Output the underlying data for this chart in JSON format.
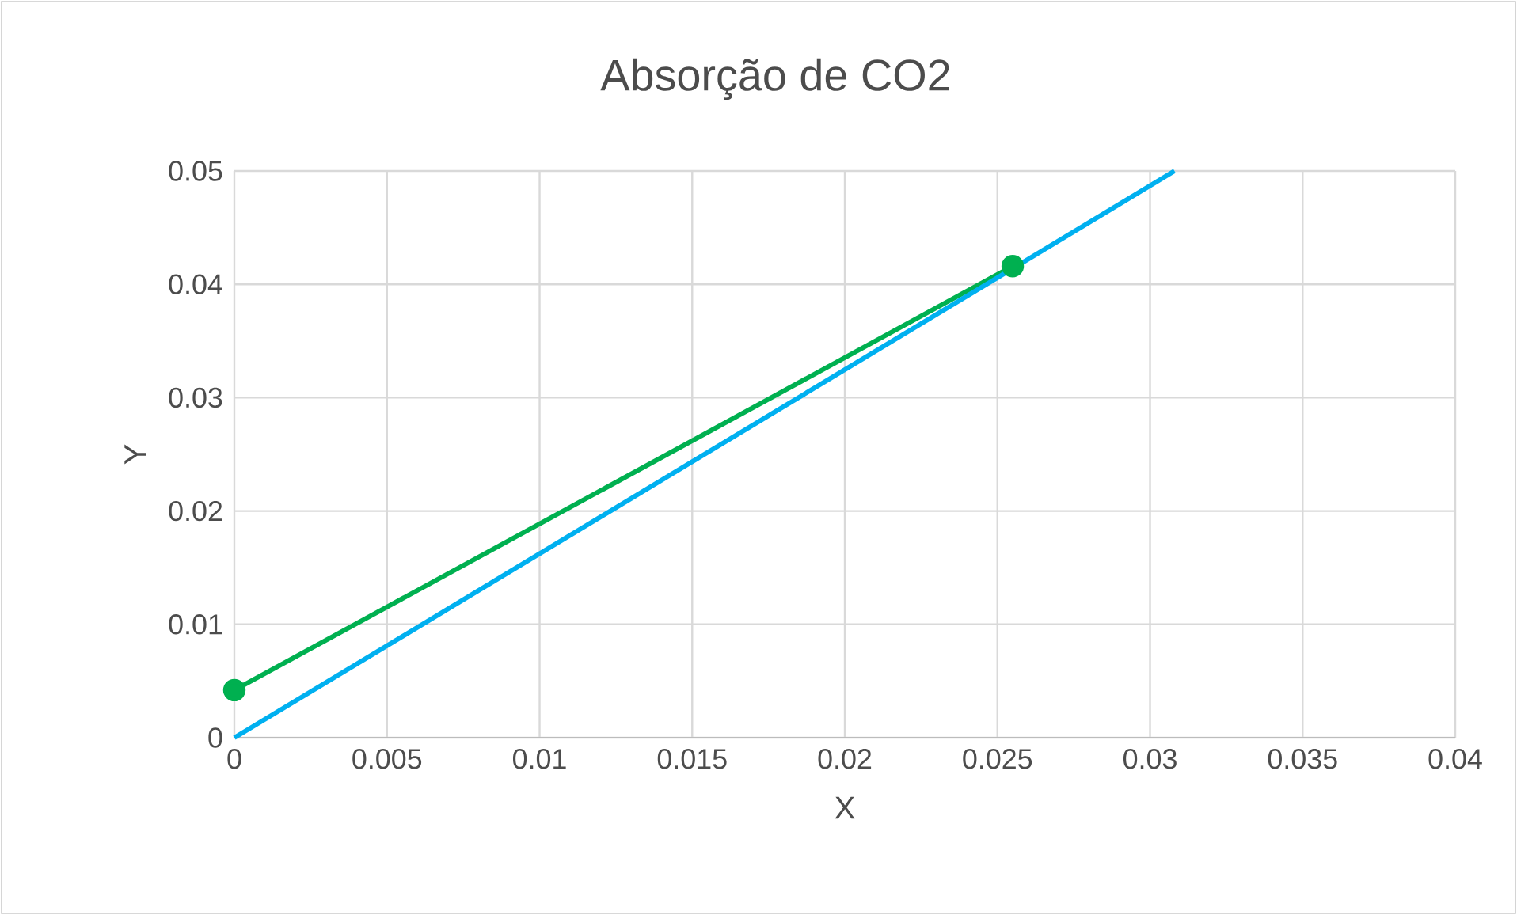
{
  "chart_data": {
    "type": "line",
    "title": "Absorção de CO2",
    "xlabel": "X",
    "ylabel": "Y",
    "series": [
      {
        "color": "#00b050",
        "x": [
          0,
          0.0255
        ],
        "values": [
          0.0042,
          0.0416
        ],
        "marker": "circle"
      },
      {
        "color": "#00b0f0",
        "x": [
          0,
          0.0308
        ],
        "values": [
          0,
          0.05
        ],
        "marker": "none"
      }
    ],
    "xlim": [
      0,
      0.04
    ],
    "ylim": [
      0,
      0.05
    ],
    "xticks": [
      0,
      0.005,
      0.01,
      0.015,
      0.02,
      0.025,
      0.03,
      0.035,
      0.04
    ],
    "yticks": [
      0,
      0.01,
      0.02,
      0.03,
      0.04,
      0.05
    ],
    "grid": true,
    "line_style": "solid"
  }
}
